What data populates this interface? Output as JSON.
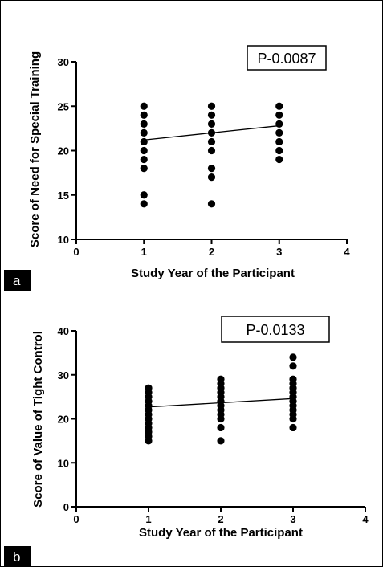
{
  "chart_data": [
    {
      "type": "scatter",
      "panel_label": "a",
      "xlabel": "Study Year of the Participant",
      "ylabel": "Score of Need for Special Training",
      "xlim": [
        0,
        4
      ],
      "ylim": [
        10,
        30
      ],
      "xticks": [
        0,
        1,
        2,
        3,
        4
      ],
      "yticks": [
        10,
        15,
        20,
        25,
        30
      ],
      "annotation": "P-0.0087",
      "points": [
        {
          "x": 1,
          "y": 25
        },
        {
          "x": 1,
          "y": 24
        },
        {
          "x": 1,
          "y": 23
        },
        {
          "x": 1,
          "y": 22
        },
        {
          "x": 1,
          "y": 21
        },
        {
          "x": 1,
          "y": 20
        },
        {
          "x": 1,
          "y": 19
        },
        {
          "x": 1,
          "y": 18
        },
        {
          "x": 1,
          "y": 15
        },
        {
          "x": 1,
          "y": 14
        },
        {
          "x": 2,
          "y": 25
        },
        {
          "x": 2,
          "y": 24
        },
        {
          "x": 2,
          "y": 23
        },
        {
          "x": 2,
          "y": 22
        },
        {
          "x": 2,
          "y": 21
        },
        {
          "x": 2,
          "y": 20
        },
        {
          "x": 2,
          "y": 18
        },
        {
          "x": 2,
          "y": 17
        },
        {
          "x": 2,
          "y": 14
        },
        {
          "x": 3,
          "y": 25
        },
        {
          "x": 3,
          "y": 24
        },
        {
          "x": 3,
          "y": 23
        },
        {
          "x": 3,
          "y": 22
        },
        {
          "x": 3,
          "y": 21
        },
        {
          "x": 3,
          "y": 20
        },
        {
          "x": 3,
          "y": 19
        }
      ],
      "fit_line": [
        {
          "x": 1,
          "y": 21.2
        },
        {
          "x": 3,
          "y": 22.8
        }
      ]
    },
    {
      "type": "scatter",
      "panel_label": "b",
      "xlabel": "Study Year of the Participant",
      "ylabel": "Score of Value of Tight Control",
      "xlim": [
        0,
        4
      ],
      "ylim": [
        0,
        40
      ],
      "xticks": [
        0,
        1,
        2,
        3,
        4
      ],
      "yticks": [
        0,
        10,
        20,
        30,
        40
      ],
      "annotation": "P-0.0133",
      "points": [
        {
          "x": 1,
          "y": 27
        },
        {
          "x": 1,
          "y": 26
        },
        {
          "x": 1,
          "y": 25
        },
        {
          "x": 1,
          "y": 24
        },
        {
          "x": 1,
          "y": 23
        },
        {
          "x": 1,
          "y": 22
        },
        {
          "x": 1,
          "y": 21
        },
        {
          "x": 1,
          "y": 20
        },
        {
          "x": 1,
          "y": 19
        },
        {
          "x": 1,
          "y": 18
        },
        {
          "x": 1,
          "y": 17
        },
        {
          "x": 1,
          "y": 16
        },
        {
          "x": 1,
          "y": 15
        },
        {
          "x": 2,
          "y": 29
        },
        {
          "x": 2,
          "y": 28
        },
        {
          "x": 2,
          "y": 27
        },
        {
          "x": 2,
          "y": 26
        },
        {
          "x": 2,
          "y": 25
        },
        {
          "x": 2,
          "y": 24
        },
        {
          "x": 2,
          "y": 23
        },
        {
          "x": 2,
          "y": 22
        },
        {
          "x": 2,
          "y": 21
        },
        {
          "x": 2,
          "y": 20
        },
        {
          "x": 2,
          "y": 18
        },
        {
          "x": 2,
          "y": 15
        },
        {
          "x": 3,
          "y": 34
        },
        {
          "x": 3,
          "y": 32
        },
        {
          "x": 3,
          "y": 29
        },
        {
          "x": 3,
          "y": 28
        },
        {
          "x": 3,
          "y": 27
        },
        {
          "x": 3,
          "y": 26
        },
        {
          "x": 3,
          "y": 25
        },
        {
          "x": 3,
          "y": 24
        },
        {
          "x": 3,
          "y": 23
        },
        {
          "x": 3,
          "y": 22
        },
        {
          "x": 3,
          "y": 21
        },
        {
          "x": 3,
          "y": 20
        },
        {
          "x": 3,
          "y": 18
        }
      ],
      "fit_line": [
        {
          "x": 1,
          "y": 22.7
        },
        {
          "x": 3,
          "y": 24.6
        }
      ]
    }
  ]
}
